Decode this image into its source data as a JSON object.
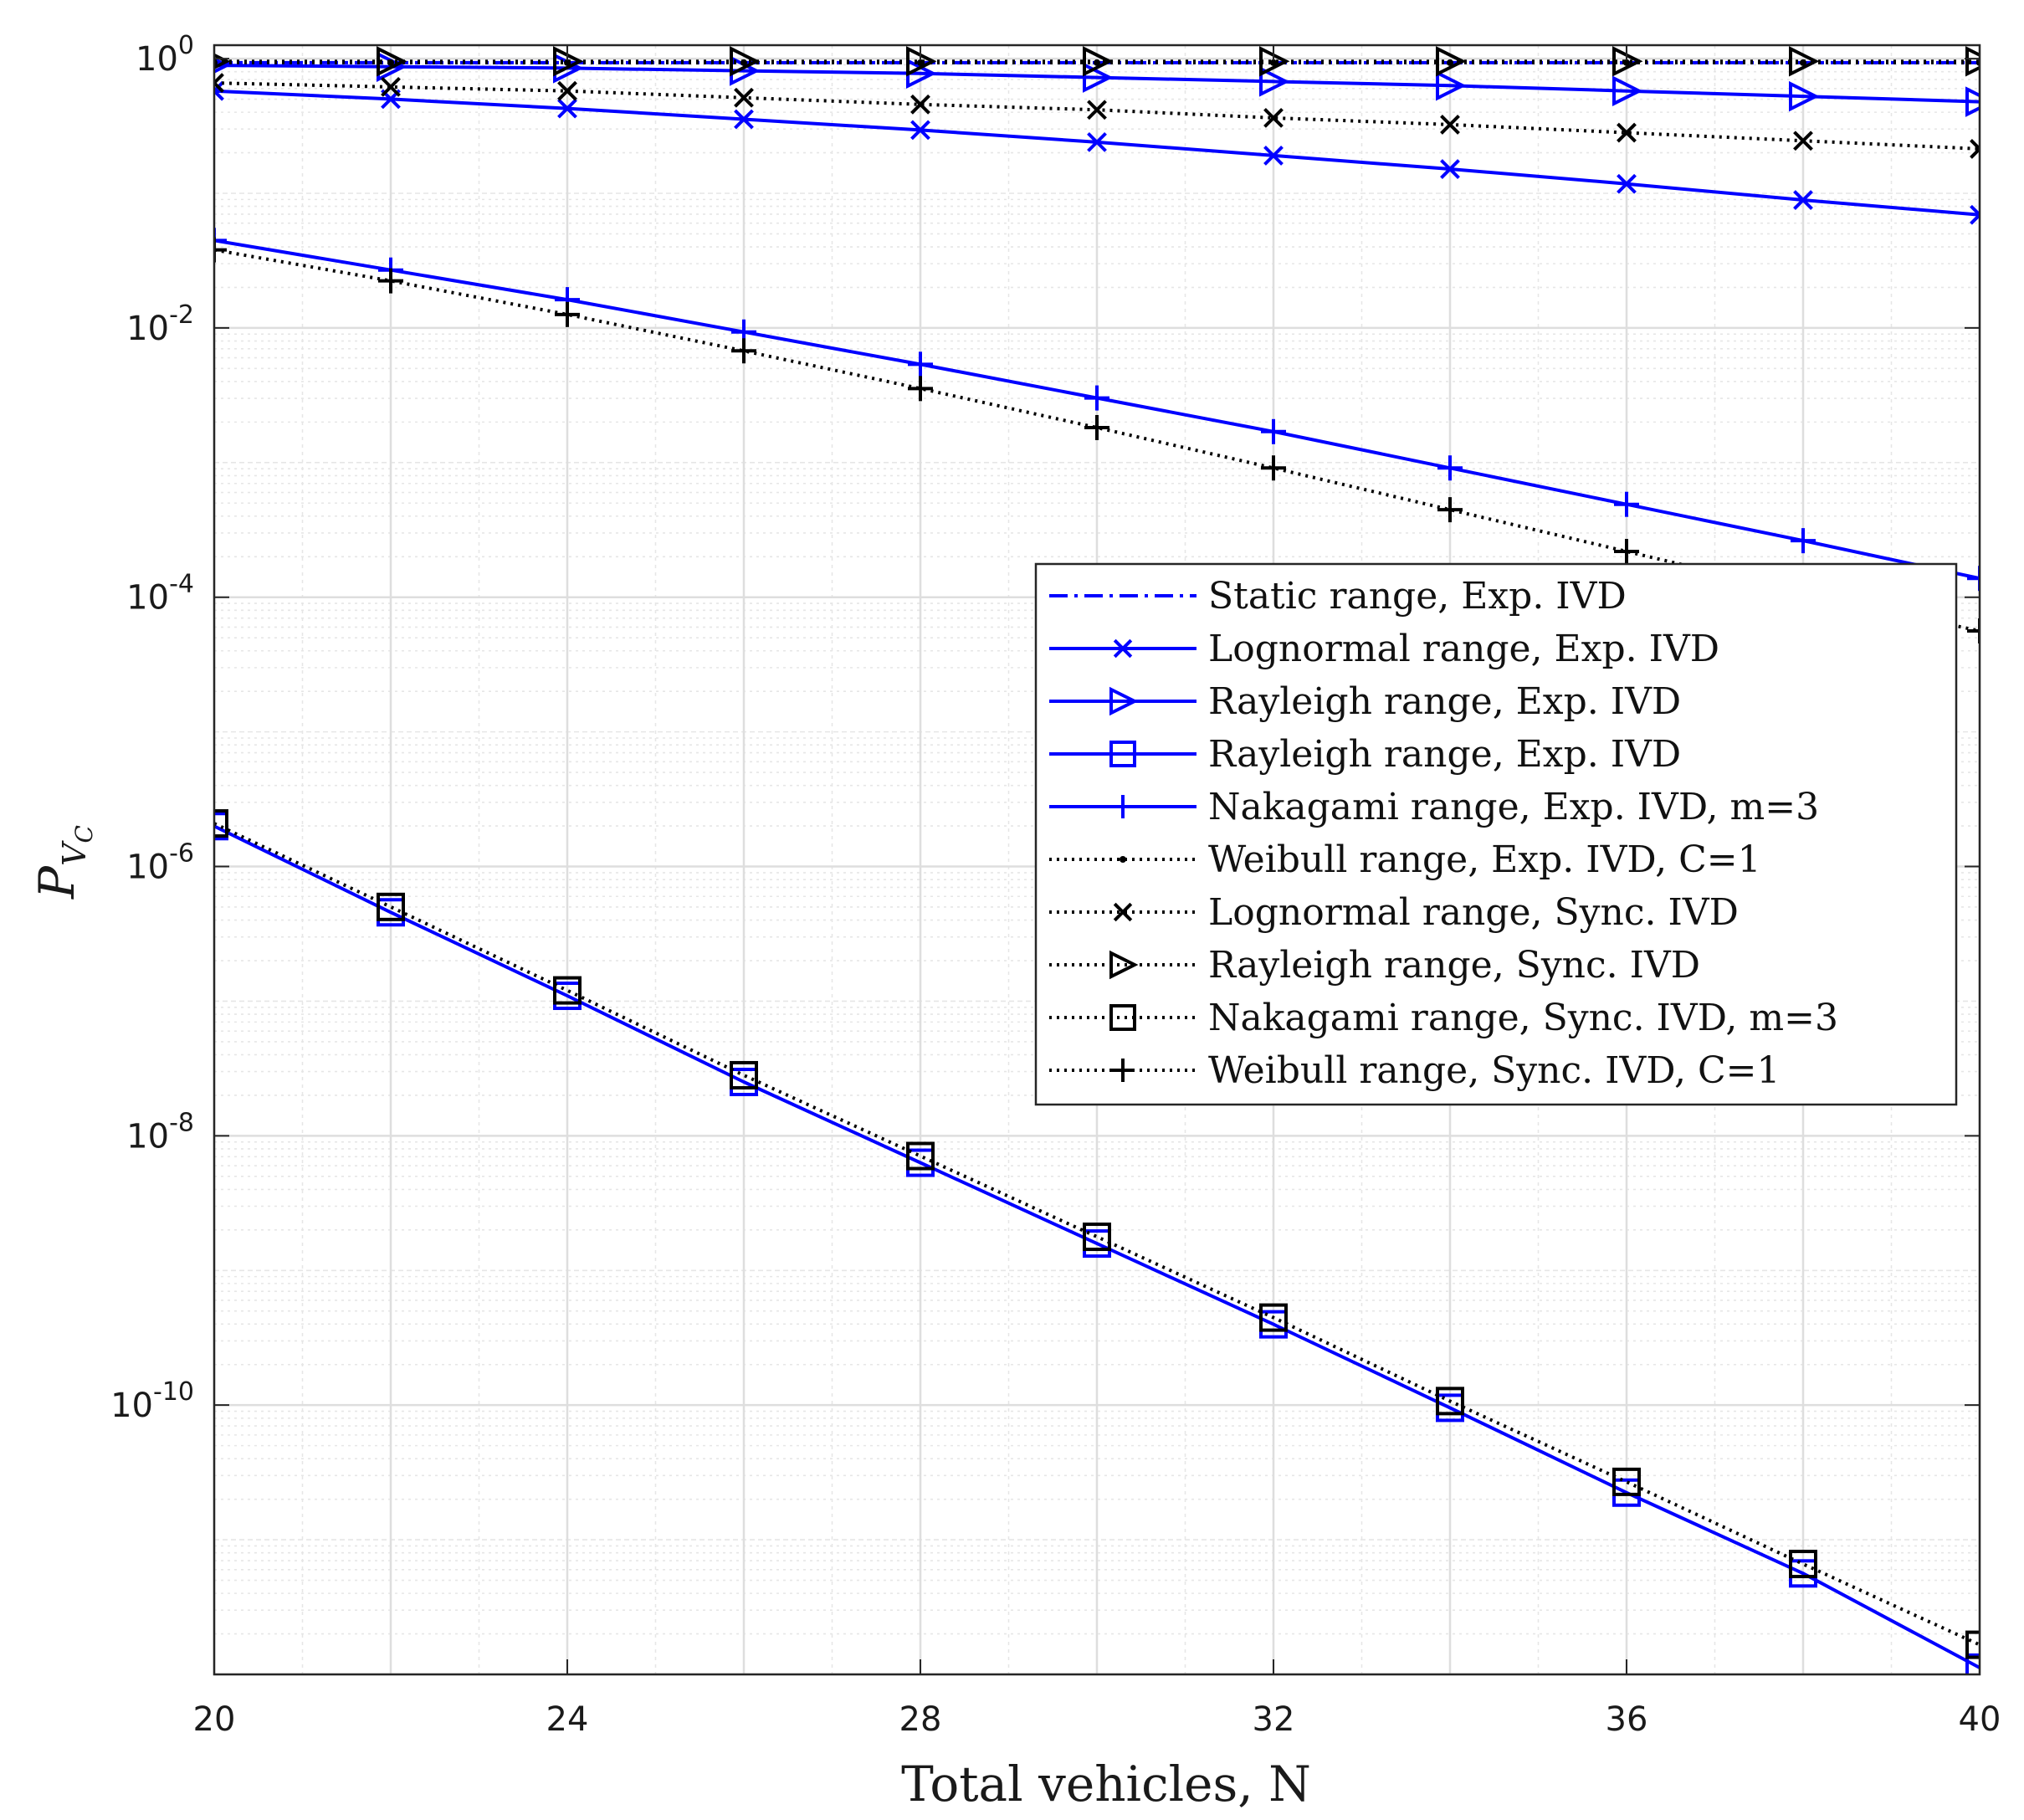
{
  "chart_data": {
    "type": "line",
    "title": "",
    "xlabel": "Total vehicles, N",
    "ylabel": "P_Vc",
    "ylabel_main": "P",
    "ylabel_sub": "V",
    "ylabel_subsub": "C",
    "xlim": [
      20,
      40
    ],
    "ylim_log10": [
      -12,
      0.1
    ],
    "yscale": "log",
    "grid": "on (major and minor)",
    "legend_position": "right, mid-upper",
    "x_ticks": [
      20,
      24,
      28,
      32,
      36,
      40
    ],
    "x_tick_labels": [
      "20",
      "24",
      "28",
      "32",
      "36",
      "40"
    ],
    "y_ticks": [
      {
        "base": "10",
        "exp": "0",
        "value": 0
      },
      {
        "base": "10",
        "exp": "-2",
        "value": -2
      },
      {
        "base": "10",
        "exp": "-4",
        "value": -4
      },
      {
        "base": "10",
        "exp": "-6",
        "value": -6
      },
      {
        "base": "10",
        "exp": "-8",
        "value": -8
      },
      {
        "base": "10",
        "exp": "-10",
        "value": -10
      }
    ],
    "x": [
      20,
      22,
      24,
      26,
      28,
      30,
      32,
      34,
      36,
      38,
      40
    ],
    "series": [
      {
        "name": "Static range, Exp. IVD",
        "color": "#0000ff",
        "dash": "dashdot",
        "marker": "none",
        "log10_values": [
          -0.03,
          -0.03,
          -0.03,
          -0.03,
          -0.03,
          -0.03,
          -0.03,
          -0.03,
          -0.03,
          -0.03,
          -0.03
        ]
      },
      {
        "name": "Lognormal range, Exp. IVD",
        "color": "#0000ff",
        "dash": "solid",
        "marker": "x",
        "log10_values": [
          -0.24,
          -0.3,
          -0.37,
          -0.45,
          -0.53,
          -0.62,
          -0.72,
          -0.82,
          -0.93,
          -1.05,
          -1.16
        ]
      },
      {
        "name": "Rayleigh range, Exp. IVD",
        "color": "#0000ff",
        "dash": "solid",
        "marker": "triangle-right",
        "log10_values": [
          -0.05,
          -0.06,
          -0.07,
          -0.09,
          -0.11,
          -0.14,
          -0.17,
          -0.2,
          -0.24,
          -0.28,
          -0.32
        ]
      },
      {
        "name": "Rayleigh range, Exp. IVD",
        "color": "#0000ff",
        "dash": "solid",
        "marker": "square",
        "log10_values": [
          -5.7,
          -6.34,
          -6.96,
          -7.6,
          -8.2,
          -8.8,
          -9.4,
          -10.02,
          -10.65,
          -11.25,
          -11.95
        ]
      },
      {
        "name": "Nakagami range, Exp. IVD, m=3",
        "color": "#0000ff",
        "dash": "solid",
        "marker": "plus",
        "log10_values": [
          -1.35,
          -1.57,
          -1.79,
          -2.03,
          -2.27,
          -2.52,
          -2.77,
          -3.04,
          -3.31,
          -3.58,
          -3.86
        ]
      },
      {
        "name": "Weibull range, Exp. IVD, C=1",
        "color": "#000000",
        "dash": "dotted",
        "marker": "dot",
        "log10_values": [
          -0.03,
          -0.03,
          -0.03,
          -0.03,
          -0.03,
          -0.03,
          -0.03,
          -0.03,
          -0.03,
          -0.03,
          -0.03
        ]
      },
      {
        "name": "Lognormal range, Sync. IVD",
        "color": "#000000",
        "dash": "dotted",
        "marker": "x",
        "log10_values": [
          -0.18,
          -0.21,
          -0.24,
          -0.29,
          -0.34,
          -0.38,
          -0.44,
          -0.49,
          -0.55,
          -0.61,
          -0.67
        ]
      },
      {
        "name": "Rayleigh range, Sync. IVD",
        "color": "#000000",
        "dash": "dotted",
        "marker": "triangle-right",
        "log10_values": [
          -0.02,
          -0.02,
          -0.02,
          -0.02,
          -0.02,
          -0.02,
          -0.02,
          -0.02,
          -0.02,
          -0.02,
          -0.02
        ]
      },
      {
        "name": "Nakagami range, Sync. IVD, m=3",
        "color": "#000000",
        "dash": "dotted",
        "marker": "square",
        "log10_values": [
          -5.68,
          -6.3,
          -6.92,
          -7.55,
          -8.15,
          -8.75,
          -9.35,
          -9.97,
          -10.57,
          -11.18,
          -11.78
        ]
      },
      {
        "name": "Weibull range, Sync. IVD, C=1",
        "color": "#000000",
        "dash": "dotted",
        "marker": "plus",
        "log10_values": [
          -1.42,
          -1.65,
          -1.9,
          -2.17,
          -2.45,
          -2.74,
          -3.04,
          -3.35,
          -3.66,
          -3.97,
          -4.25
        ]
      }
    ]
  }
}
